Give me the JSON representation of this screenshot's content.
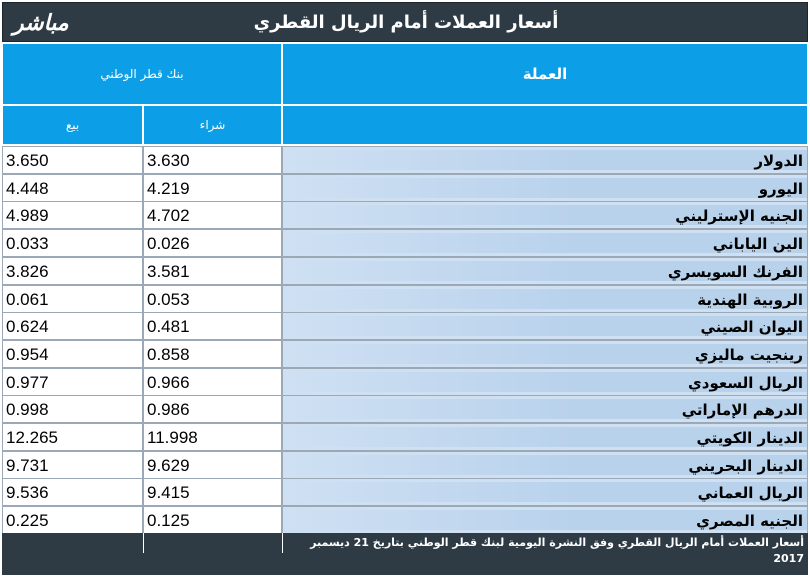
{
  "header": {
    "title": "أسعار العملات أمام الريال القطري",
    "logo": "مباشر"
  },
  "columns": {
    "bank": "بنك قطر الوطني",
    "currency": "العملة",
    "sell": "بيع",
    "buy": "شراء"
  },
  "rows": [
    {
      "name": "الدولار",
      "buy": "3.630",
      "sell": "3.650"
    },
    {
      "name": "اليورو",
      "buy": "4.219",
      "sell": "4.448"
    },
    {
      "name": "الجنيه الإسترليني",
      "buy": "4.702",
      "sell": "4.989"
    },
    {
      "name": "الين الياباني",
      "buy": "0.026",
      "sell": "0.033"
    },
    {
      "name": "الفرنك السويسري",
      "buy": "3.581",
      "sell": "3.826"
    },
    {
      "name": "الروبية الهندية",
      "buy": "0.053",
      "sell": "0.061"
    },
    {
      "name": "اليوان الصيني",
      "buy": "0.481",
      "sell": "0.624"
    },
    {
      "name": "رينجيت ماليزي",
      "buy": "0.858",
      "sell": "0.954"
    },
    {
      "name": "الريال السعودي",
      "buy": "0.966",
      "sell": "0.977"
    },
    {
      "name": "الدرهم الإماراتي",
      "buy": "0.986",
      "sell": "0.998"
    },
    {
      "name": "الدينار الكويتي",
      "buy": "11.998",
      "sell": "12.265"
    },
    {
      "name": "الدينار البحريني",
      "buy": "9.629",
      "sell": "9.731"
    },
    {
      "name": "الريال العماني",
      "buy": "9.415",
      "sell": "9.536"
    },
    {
      "name": "الجنيه المصري",
      "buy": "0.125",
      "sell": "0.225"
    }
  ],
  "footer": {
    "note": "أسعار العملات أمام الريال القطري وفق النشرة اليومية لبنك قطر الوطني بتاريخ 21 ديسمبر 2017"
  }
}
